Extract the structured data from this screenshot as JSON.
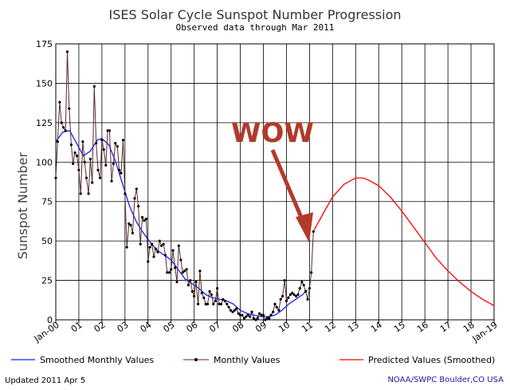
{
  "chart_data": {
    "type": "line",
    "title": "ISES Solar Cycle Sunspot Number Progression",
    "subtitle": "Observed data through Mar 2011",
    "ylabel": "Sunspot Number",
    "xlabel": "",
    "xlim": [
      2000.0,
      2019.0
    ],
    "ylim": [
      0,
      175
    ],
    "yticks": [
      0,
      25,
      50,
      75,
      100,
      125,
      150,
      175
    ],
    "xticks": [
      {
        "x": 2000,
        "label": "Jan-00"
      },
      {
        "x": 2001,
        "label": "01"
      },
      {
        "x": 2002,
        "label": "02"
      },
      {
        "x": 2003,
        "label": "03"
      },
      {
        "x": 2004,
        "label": "04"
      },
      {
        "x": 2005,
        "label": "05"
      },
      {
        "x": 2006,
        "label": "06"
      },
      {
        "x": 2007,
        "label": "07"
      },
      {
        "x": 2008,
        "label": "08"
      },
      {
        "x": 2009,
        "label": "09"
      },
      {
        "x": 2010,
        "label": "10"
      },
      {
        "x": 2011,
        "label": "11"
      },
      {
        "x": 2012,
        "label": "12"
      },
      {
        "x": 2013,
        "label": "13"
      },
      {
        "x": 2014,
        "label": "14"
      },
      {
        "x": 2015,
        "label": "15"
      },
      {
        "x": 2016,
        "label": "16"
      },
      {
        "x": 2017,
        "label": "17"
      },
      {
        "x": 2018,
        "label": "18"
      },
      {
        "x": 2019,
        "label": "Jan-19"
      }
    ],
    "grid": true,
    "series": [
      {
        "name": "Smoothed Monthly Values",
        "color": "#1a1aff",
        "x": [
          2000.0,
          2000.3,
          2000.6,
          2000.9,
          2001.2,
          2001.5,
          2001.8,
          2002.0,
          2002.3,
          2002.6,
          2002.9,
          2003.2,
          2003.5,
          2003.8,
          2004.1,
          2004.4,
          2004.7,
          2005.0,
          2005.3,
          2005.6,
          2005.9,
          2006.2,
          2006.5,
          2006.8,
          2007.1,
          2007.4,
          2007.7,
          2008.0,
          2008.3,
          2008.6,
          2008.9,
          2009.2,
          2009.5,
          2009.8,
          2010.1,
          2010.4,
          2010.7,
          2010.9
        ],
        "values": [
          113,
          119,
          120,
          112,
          104,
          107,
          114,
          115,
          111,
          100,
          86,
          72,
          62,
          55,
          49,
          44,
          41,
          38,
          32,
          26,
          23,
          20,
          16,
          14,
          13,
          12,
          10,
          6,
          4,
          3,
          2,
          2,
          3,
          6,
          10,
          13,
          16,
          19
        ]
      },
      {
        "name": "Monthly Values",
        "color": "#5a2a2a",
        "x": [
          2000.0,
          2000.08,
          2000.17,
          2000.25,
          2000.33,
          2000.42,
          2000.5,
          2000.58,
          2000.67,
          2000.75,
          2000.83,
          2000.92,
          2001.0,
          2001.08,
          2001.17,
          2001.25,
          2001.33,
          2001.42,
          2001.5,
          2001.58,
          2001.67,
          2001.75,
          2001.83,
          2001.92,
          2002.0,
          2002.08,
          2002.17,
          2002.25,
          2002.33,
          2002.42,
          2002.5,
          2002.58,
          2002.67,
          2002.75,
          2002.83,
          2002.92,
          2003.0,
          2003.08,
          2003.17,
          2003.25,
          2003.33,
          2003.42,
          2003.5,
          2003.58,
          2003.67,
          2003.75,
          2003.83,
          2003.92,
          2004.0,
          2004.08,
          2004.17,
          2004.25,
          2004.33,
          2004.42,
          2004.5,
          2004.58,
          2004.67,
          2004.75,
          2004.83,
          2004.92,
          2005.0,
          2005.08,
          2005.17,
          2005.25,
          2005.33,
          2005.42,
          2005.5,
          2005.58,
          2005.67,
          2005.75,
          2005.83,
          2005.92,
          2006.0,
          2006.08,
          2006.17,
          2006.25,
          2006.33,
          2006.42,
          2006.5,
          2006.58,
          2006.67,
          2006.75,
          2006.83,
          2006.92,
          2007.0,
          2007.08,
          2007.17,
          2007.25,
          2007.33,
          2007.42,
          2007.5,
          2007.58,
          2007.67,
          2007.75,
          2007.83,
          2007.92,
          2008.0,
          2008.08,
          2008.17,
          2008.25,
          2008.33,
          2008.42,
          2008.5,
          2008.58,
          2008.67,
          2008.75,
          2008.83,
          2008.92,
          2009.0,
          2009.08,
          2009.17,
          2009.25,
          2009.33,
          2009.42,
          2009.5,
          2009.58,
          2009.67,
          2009.75,
          2009.83,
          2009.92,
          2010.0,
          2010.08,
          2010.17,
          2010.25,
          2010.33,
          2010.42,
          2010.5,
          2010.58,
          2010.67,
          2010.75,
          2010.83,
          2010.92,
          2011.0,
          2011.08,
          2011.17
        ],
        "values": [
          90,
          113,
          138,
          125,
          122,
          120,
          170,
          134,
          111,
          99,
          106,
          104,
          95,
          80,
          113,
          100,
          90,
          80,
          102,
          87,
          148,
          112,
          95,
          90,
          114,
          108,
          98,
          120,
          120,
          88,
          99,
          112,
          110,
          95,
          93,
          114,
          80,
          46,
          61,
          60,
          55,
          77,
          83,
          72,
          48,
          65,
          63,
          64,
          37,
          46,
          48,
          40,
          45,
          43,
          50,
          47,
          48,
          41,
          30,
          30,
          32,
          44,
          33,
          24,
          47,
          38,
          30,
          31,
          32,
          22,
          25,
          18,
          15,
          24,
          10,
          31,
          17,
          14,
          10,
          10,
          18,
          16,
          10,
          12,
          20,
          10,
          10,
          13,
          12,
          10,
          8,
          6,
          5,
          6,
          7,
          4,
          3,
          3,
          1,
          2,
          3,
          2,
          5,
          1,
          0,
          1,
          4,
          3,
          3,
          0,
          1,
          1,
          3,
          5,
          10,
          8,
          6,
          13,
          15,
          25,
          12,
          14,
          16,
          17,
          16,
          15,
          16,
          20,
          24,
          22,
          18,
          13,
          20,
          30,
          56
        ]
      },
      {
        "name": "Predicted Values (Smoothed)",
        "color": "#ff0000",
        "x": [
          2011.2,
          2011.5,
          2012.0,
          2012.5,
          2013.0,
          2013.3,
          2013.5,
          2014.0,
          2014.5,
          2015.0,
          2015.5,
          2016.0,
          2016.5,
          2017.0,
          2017.5,
          2018.0,
          2018.5,
          2019.0
        ],
        "values": [
          57,
          65,
          78,
          86,
          90,
          90,
          89,
          85,
          78,
          69,
          59,
          49,
          39,
          31,
          24,
          18,
          13,
          9
        ]
      }
    ],
    "annotations": [
      {
        "text": "WOW",
        "color": "#b23a2a",
        "arrow_to": {
          "x": 2010.95,
          "y": 50
        }
      }
    ],
    "legend": {
      "position": "bottom",
      "items": [
        "Smoothed Monthly Values",
        "Monthly Values",
        "Predicted Values (Smoothed)"
      ]
    }
  },
  "footer": {
    "updated": "Updated 2011 Apr  5",
    "source": "NOAA/SWPC Boulder,CO USA"
  },
  "colors": {
    "grid": "#000000",
    "annotation": "#b23a2a"
  }
}
